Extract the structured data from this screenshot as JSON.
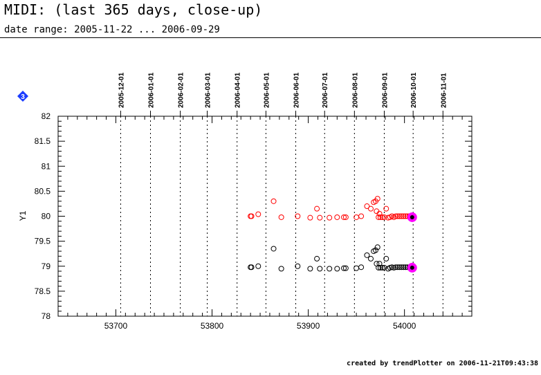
{
  "header": {
    "title": "MIDI: (last 365 days, close-up)",
    "subtitle": "date range: 2005-11-22 ... 2006-09-29"
  },
  "footer": {
    "credit": "created by trendPlotter on 2006-11-21T09:43:38"
  },
  "badge": {
    "label": "3",
    "color": "#1a3cff"
  },
  "colors": {
    "series_red": "#ff0000",
    "series_black": "#000000",
    "highlight": "#ff00ff"
  },
  "chart_data": {
    "type": "scatter",
    "xlim": [
      53640,
      54070
    ],
    "ylim": [
      78,
      82
    ],
    "ylabel": "Y1",
    "xticks": [
      53700,
      53800,
      53900,
      54000
    ],
    "xtick_labels": [
      "53700",
      "53800",
      "53900",
      "54000"
    ],
    "yticks": [
      78,
      78.5,
      79,
      79.5,
      80,
      80.5,
      81,
      81.5,
      82
    ],
    "ytick_labels": [
      "78",
      "78.5",
      "79",
      "79.5",
      "80",
      "80.5",
      "81",
      "81.5",
      "82"
    ],
    "date_markers": [
      {
        "label": "2005-12-01",
        "mjd": 53705
      },
      {
        "label": "2006-01-01",
        "mjd": 53736
      },
      {
        "label": "2006-02-01",
        "mjd": 53767
      },
      {
        "label": "2006-03-01",
        "mjd": 53795
      },
      {
        "label": "2006-04-01",
        "mjd": 53826
      },
      {
        "label": "2006-05-01",
        "mjd": 53856
      },
      {
        "label": "2006-06-01",
        "mjd": 53887
      },
      {
        "label": "2006-07-01",
        "mjd": 53917
      },
      {
        "label": "2006-08-01",
        "mjd": 53948
      },
      {
        "label": "2006-09-01",
        "mjd": 53979
      },
      {
        "label": "2006-10-01",
        "mjd": 54009
      },
      {
        "label": "2006-11-01",
        "mjd": 54040
      }
    ],
    "series": [
      {
        "color": "#ff0000",
        "x": [
          53840,
          53841,
          53848,
          53864,
          53872,
          53889,
          53902,
          53909,
          53912,
          53922,
          53930,
          53937,
          53939,
          53950,
          53955,
          53961,
          53965,
          53968,
          53970,
          53971,
          53972,
          53973,
          53974,
          53975,
          53977,
          53979,
          53981,
          53983,
          53985,
          53987,
          53989,
          53991,
          53993,
          53995,
          53997,
          53999,
          54001,
          54003,
          54005
        ],
        "y": [
          80.0,
          80.0,
          80.04,
          80.3,
          79.98,
          80.0,
          79.97,
          80.15,
          79.97,
          79.97,
          79.98,
          79.98,
          79.98,
          79.98,
          80.0,
          80.2,
          80.15,
          80.28,
          80.3,
          80.1,
          80.35,
          79.98,
          80.05,
          79.98,
          79.98,
          79.98,
          80.15,
          79.97,
          79.98,
          80.0,
          79.98,
          80.0,
          80.0,
          80.0,
          80.0,
          80.0,
          80.0,
          80.0,
          80.0
        ]
      },
      {
        "color": "#000000",
        "x": [
          53840,
          53841,
          53848,
          53864,
          53872,
          53889,
          53902,
          53909,
          53912,
          53922,
          53930,
          53937,
          53939,
          53950,
          53955,
          53961,
          53965,
          53968,
          53970,
          53971,
          53972,
          53973,
          53974,
          53975,
          53977,
          53979,
          53981,
          53983,
          53985,
          53987,
          53989,
          53991,
          53993,
          53995,
          53997,
          53999,
          54001,
          54003,
          54005
        ],
        "y": [
          78.98,
          78.98,
          79.0,
          79.35,
          78.95,
          79.0,
          78.95,
          79.15,
          78.95,
          78.95,
          78.95,
          78.96,
          78.96,
          78.96,
          78.98,
          79.22,
          79.15,
          79.3,
          79.32,
          79.05,
          79.38,
          78.97,
          79.05,
          78.97,
          78.97,
          78.97,
          79.15,
          78.95,
          78.97,
          78.98,
          78.97,
          78.98,
          78.98,
          78.98,
          78.98,
          78.98,
          78.98,
          78.98,
          78.98
        ]
      }
    ],
    "highlight_points": [
      {
        "x": 54008,
        "y": 79.98
      },
      {
        "x": 54008,
        "y": 78.97
      }
    ],
    "grid": "vertical dotted at date markers"
  }
}
